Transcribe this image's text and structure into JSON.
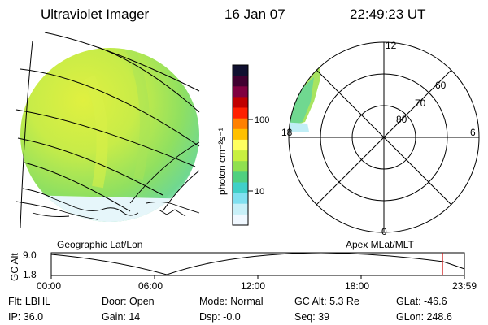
{
  "header": {
    "instrument": "Ultraviolet Imager",
    "date": "16 Jan 07",
    "time": "22:49:23 UT"
  },
  "colorbar": {
    "label": "photon cm⁻²s⁻¹",
    "ticks": [
      "100",
      "10"
    ],
    "colors": [
      "#101030",
      "#400030",
      "#800040",
      "#c00000",
      "#ff2000",
      "#ff8000",
      "#ffc000",
      "#ffff60",
      "#c8f040",
      "#90e050",
      "#50d080",
      "#40d0c8",
      "#80e0f0",
      "#c8f0f8",
      "#f0f8ff"
    ]
  },
  "labels": {
    "left_panel": "Geographic Lat/Lon",
    "right_panel": "Apex  MLat/MLT"
  },
  "polar_plot": {
    "mlt_labels": [
      "12",
      "18",
      "6",
      "0"
    ],
    "lat_labels": [
      "60",
      "70",
      "80"
    ]
  },
  "timeline": {
    "ylabel": "GC Alt",
    "yticks": [
      "9.0",
      "1.8"
    ],
    "xticks": [
      "00:00",
      "06:00",
      "12:00",
      "18:00",
      "23:59"
    ],
    "marker_color": "#cc0000"
  },
  "info": {
    "flt": "Flt: LBHL",
    "ip": "IP: 36.0",
    "door": "Door: Open",
    "gain": "Gain: 14",
    "mode": "Mode: Normal",
    "dsp": "Dsp:   -0.0",
    "gc_alt": "GC Alt: 5.3 Re",
    "seq": "Seq: 39",
    "glat": "GLat: -46.6",
    "glon": "GLon: 248.6"
  }
}
